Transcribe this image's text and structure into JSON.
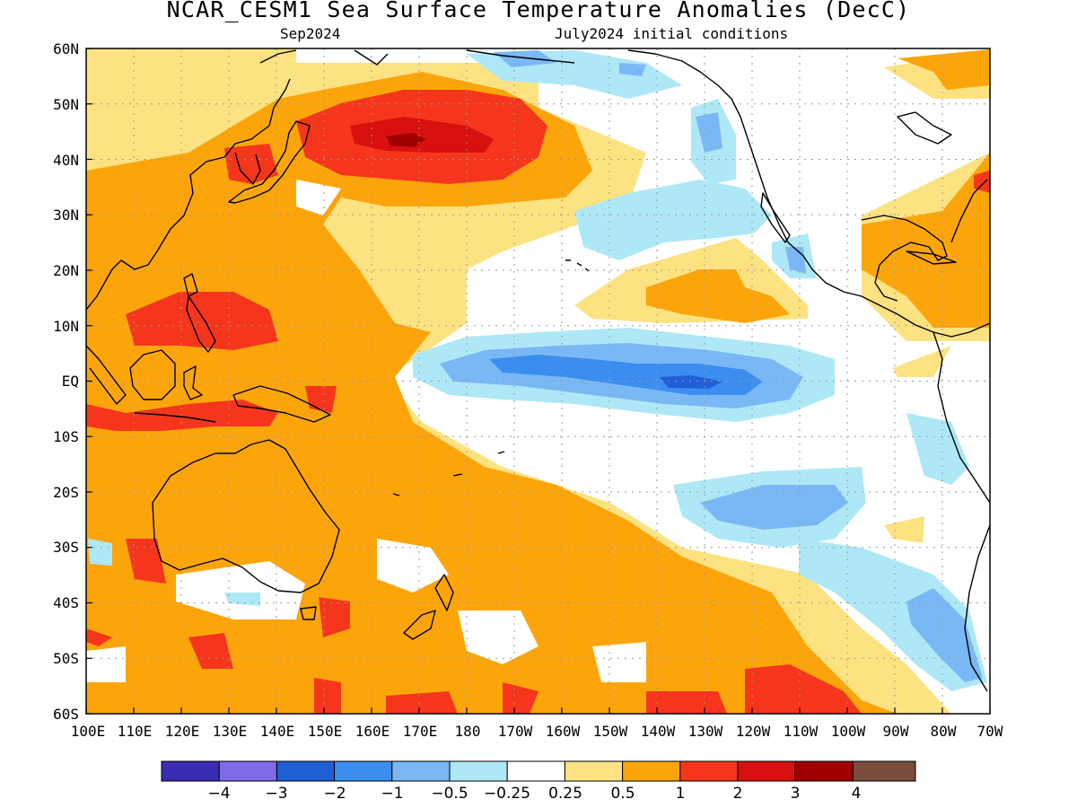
{
  "title": "NCAR_CESM1 Sea Surface Temperature Anomalies (DecC)",
  "valid_month": "Sep2024",
  "init_conditions": "July2024 initial conditions",
  "lat_labels": [
    "60N",
    "50N",
    "40N",
    "30N",
    "20N",
    "10N",
    "EQ",
    "10S",
    "20S",
    "30S",
    "40S",
    "50S",
    "60S"
  ],
  "lon_labels": [
    "100E",
    "110E",
    "120E",
    "130E",
    "140E",
    "150E",
    "160E",
    "170E",
    "180",
    "170W",
    "160W",
    "150W",
    "140W",
    "130W",
    "120W",
    "110W",
    "100W",
    "90W",
    "80W",
    "70W"
  ],
  "colorbar": {
    "colors": [
      "#3a2db5",
      "#7d6be8",
      "#1f5fd6",
      "#3b8eef",
      "#7ab8f5",
      "#aee8f7",
      "#ffffff",
      "#fde282",
      "#fca50a",
      "#f5361c",
      "#d81010",
      "#a00000",
      "#7a4c3c"
    ],
    "labels": [
      "−4",
      "−3",
      "−2",
      "−1",
      "−0.5",
      "−0.25",
      "0.25",
      "0.5",
      "1",
      "2",
      "3",
      "4"
    ]
  }
}
